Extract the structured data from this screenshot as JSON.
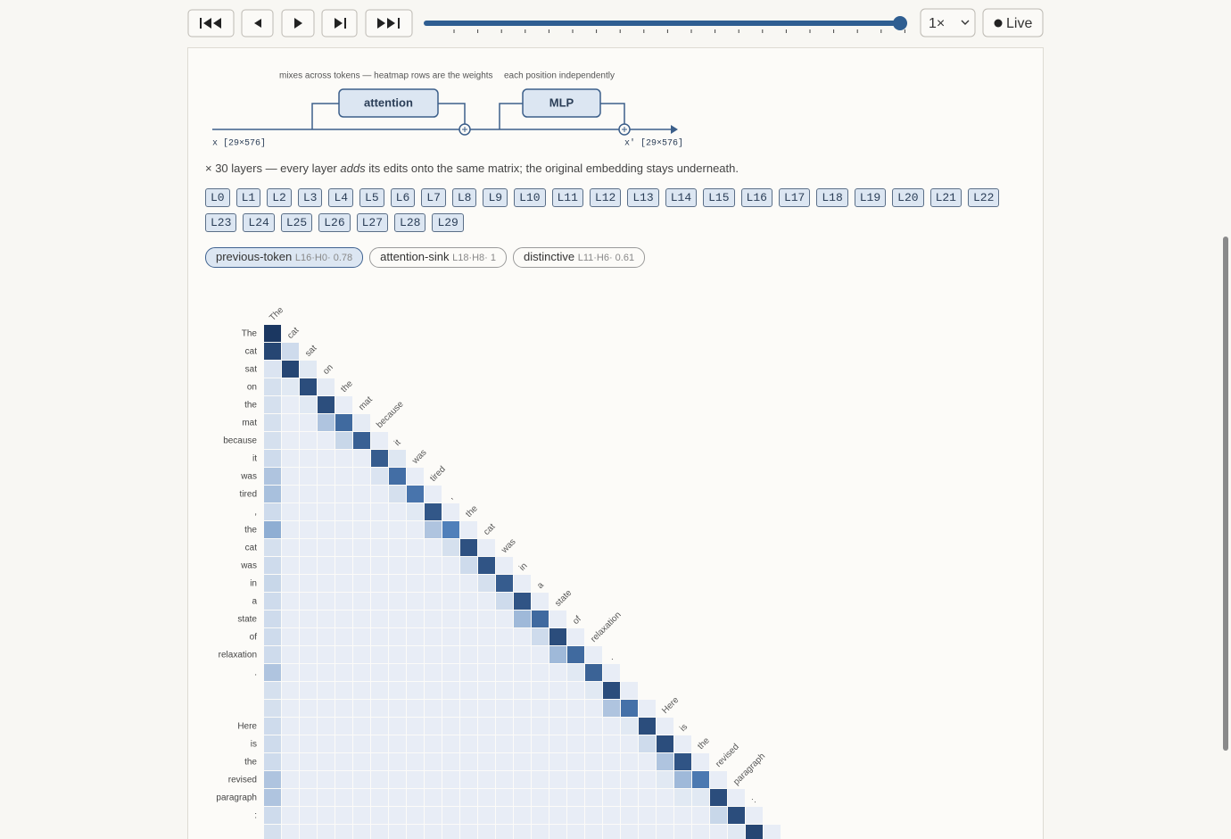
{
  "toolbar": {
    "speed": "1×",
    "live": "Live"
  },
  "diagram": {
    "attention_note": "mixes across tokens — heatmap rows are the weights",
    "mlp_note": "each position independently",
    "attention": "attention",
    "mlp": "MLP",
    "input": "x [29×576]",
    "output": "x′ [29×576]"
  },
  "caption": {
    "before": "× 30 layers — every layer ",
    "emphasis": "adds",
    "after": " its edits onto the same matrix; the original embedding stays underneath."
  },
  "layers": [
    "L0",
    "L1",
    "L2",
    "L3",
    "L4",
    "L5",
    "L6",
    "L7",
    "L8",
    "L9",
    "L10",
    "L11",
    "L12",
    "L13",
    "L14",
    "L15",
    "L16",
    "L17",
    "L18",
    "L19",
    "L20",
    "L21",
    "L22",
    "L23",
    "L24",
    "L25",
    "L26",
    "L27",
    "L28",
    "L29"
  ],
  "heads": [
    {
      "name": "previous-token",
      "meta": "L16·H0· 0.78"
    },
    {
      "name": "attention-sink",
      "meta": "L18·H8· 1"
    },
    {
      "name": "distinctive",
      "meta": "L11·H6· 0.61"
    }
  ],
  "heatmap": {
    "tokens": [
      "The",
      "cat",
      "sat",
      "on",
      "the",
      "mat",
      "because",
      "it",
      "was",
      "tired",
      ",",
      "the",
      "cat",
      "was",
      "in",
      "a",
      "state",
      "of",
      "relaxation",
      ".",
      null,
      null,
      "Here",
      "is",
      "the",
      "revised",
      "paragraph",
      ":",
      null
    ],
    "weights": [
      [
        1
      ],
      [
        0.9,
        0.1
      ],
      [
        0.06,
        0.9,
        0.04
      ],
      [
        0.08,
        0.04,
        0.85,
        0.03
      ],
      [
        0.08,
        0.02,
        0.04,
        0.84,
        0.02
      ],
      [
        0.08,
        0.02,
        0.02,
        0.2,
        0.65,
        0.03
      ],
      [
        0.08,
        0.02,
        0.02,
        0.02,
        0.12,
        0.72,
        0.02
      ],
      [
        0.1,
        0.02,
        0.02,
        0.02,
        0.02,
        0.02,
        0.75,
        0.05
      ],
      [
        0.2,
        0.02,
        0.02,
        0.02,
        0.02,
        0.02,
        0.06,
        0.62,
        0.02
      ],
      [
        0.22,
        0.02,
        0.02,
        0.02,
        0.02,
        0.02,
        0.02,
        0.08,
        0.58,
        0.02
      ],
      [
        0.1,
        0.02,
        0.02,
        0.02,
        0.02,
        0.02,
        0.02,
        0.02,
        0.04,
        0.78,
        0.02
      ],
      [
        0.3,
        0.02,
        0.02,
        0.02,
        0.02,
        0.02,
        0.02,
        0.02,
        0.02,
        0.2,
        0.5,
        0.02
      ],
      [
        0.08,
        0.02,
        0.02,
        0.02,
        0.02,
        0.02,
        0.02,
        0.02,
        0.02,
        0.02,
        0.08,
        0.82,
        0.02
      ],
      [
        0.1,
        0.02,
        0.02,
        0.02,
        0.02,
        0.02,
        0.02,
        0.02,
        0.02,
        0.02,
        0.02,
        0.1,
        0.8,
        0.02
      ],
      [
        0.12,
        0.02,
        0.02,
        0.02,
        0.02,
        0.02,
        0.02,
        0.02,
        0.02,
        0.02,
        0.02,
        0.02,
        0.08,
        0.75,
        0.02
      ],
      [
        0.1,
        0.02,
        0.02,
        0.02,
        0.02,
        0.02,
        0.02,
        0.02,
        0.02,
        0.02,
        0.02,
        0.02,
        0.02,
        0.1,
        0.8,
        0.02
      ],
      [
        0.1,
        0.02,
        0.02,
        0.02,
        0.02,
        0.02,
        0.02,
        0.02,
        0.02,
        0.02,
        0.02,
        0.02,
        0.02,
        0.02,
        0.25,
        0.65,
        0.02
      ],
      [
        0.1,
        0.02,
        0.02,
        0.02,
        0.02,
        0.02,
        0.02,
        0.02,
        0.02,
        0.02,
        0.02,
        0.02,
        0.02,
        0.02,
        0.02,
        0.1,
        0.85,
        0.02
      ],
      [
        0.1,
        0.02,
        0.02,
        0.02,
        0.02,
        0.02,
        0.02,
        0.02,
        0.02,
        0.02,
        0.02,
        0.02,
        0.02,
        0.02,
        0.02,
        0.02,
        0.25,
        0.65,
        0.02
      ],
      [
        0.2,
        0.02,
        0.02,
        0.02,
        0.02,
        0.02,
        0.02,
        0.02,
        0.02,
        0.02,
        0.02,
        0.02,
        0.02,
        0.02,
        0.02,
        0.02,
        0.02,
        0.04,
        0.7,
        0.02
      ],
      [
        0.08,
        0.02,
        0.02,
        0.02,
        0.02,
        0.02,
        0.02,
        0.02,
        0.02,
        0.02,
        0.02,
        0.02,
        0.02,
        0.02,
        0.02,
        0.02,
        0.02,
        0.02,
        0.04,
        0.85,
        0.02
      ],
      [
        0.08,
        0.02,
        0.02,
        0.02,
        0.02,
        0.02,
        0.02,
        0.02,
        0.02,
        0.02,
        0.02,
        0.02,
        0.02,
        0.02,
        0.02,
        0.02,
        0.02,
        0.02,
        0.02,
        0.2,
        0.6,
        0.02
      ],
      [
        0.1,
        0.02,
        0.02,
        0.02,
        0.02,
        0.02,
        0.02,
        0.02,
        0.02,
        0.02,
        0.02,
        0.02,
        0.02,
        0.02,
        0.02,
        0.02,
        0.02,
        0.02,
        0.02,
        0.02,
        0.04,
        0.85,
        0.02
      ],
      [
        0.1,
        0.02,
        0.02,
        0.02,
        0.02,
        0.02,
        0.02,
        0.02,
        0.02,
        0.02,
        0.02,
        0.02,
        0.02,
        0.02,
        0.02,
        0.02,
        0.02,
        0.02,
        0.02,
        0.02,
        0.02,
        0.1,
        0.85,
        0.02
      ],
      [
        0.1,
        0.02,
        0.02,
        0.02,
        0.02,
        0.02,
        0.02,
        0.02,
        0.02,
        0.02,
        0.02,
        0.02,
        0.02,
        0.02,
        0.02,
        0.02,
        0.02,
        0.02,
        0.02,
        0.02,
        0.02,
        0.02,
        0.2,
        0.8,
        0.02
      ],
      [
        0.2,
        0.02,
        0.02,
        0.02,
        0.02,
        0.02,
        0.02,
        0.02,
        0.02,
        0.02,
        0.02,
        0.02,
        0.02,
        0.02,
        0.02,
        0.02,
        0.02,
        0.02,
        0.02,
        0.02,
        0.02,
        0.02,
        0.04,
        0.25,
        0.55,
        0.02
      ],
      [
        0.2,
        0.02,
        0.02,
        0.02,
        0.02,
        0.02,
        0.02,
        0.02,
        0.02,
        0.02,
        0.02,
        0.02,
        0.02,
        0.02,
        0.02,
        0.02,
        0.02,
        0.02,
        0.02,
        0.02,
        0.02,
        0.02,
        0.02,
        0.04,
        0.04,
        0.85,
        0.02
      ],
      [
        0.1,
        0.02,
        0.02,
        0.02,
        0.02,
        0.02,
        0.02,
        0.02,
        0.02,
        0.02,
        0.02,
        0.02,
        0.02,
        0.02,
        0.02,
        0.02,
        0.02,
        0.02,
        0.02,
        0.02,
        0.02,
        0.02,
        0.02,
        0.02,
        0.02,
        0.12,
        0.85,
        0.02
      ],
      [
        0.08,
        0.02,
        0.02,
        0.02,
        0.02,
        0.02,
        0.02,
        0.02,
        0.02,
        0.02,
        0.02,
        0.02,
        0.02,
        0.02,
        0.02,
        0.02,
        0.02,
        0.02,
        0.02,
        0.02,
        0.02,
        0.02,
        0.02,
        0.02,
        0.02,
        0.02,
        0.04,
        0.9,
        0.02
      ]
    ]
  }
}
